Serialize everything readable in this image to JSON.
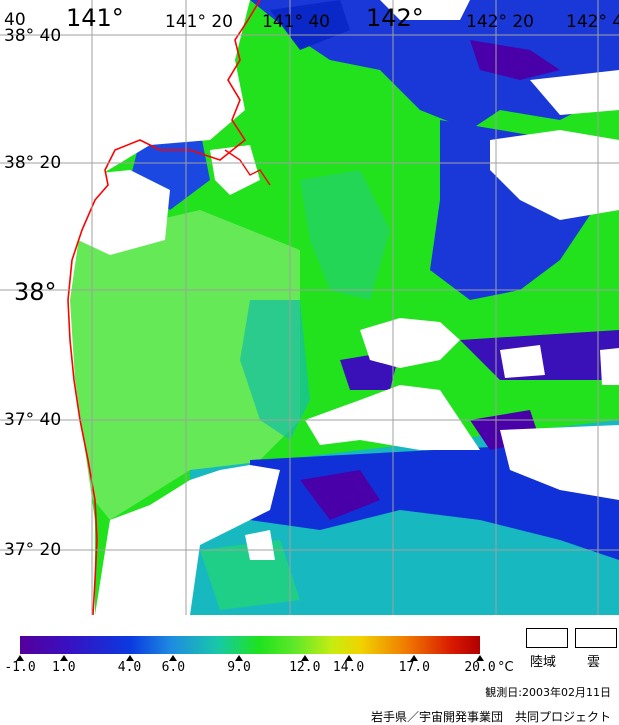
{
  "map": {
    "lon_labels": [
      "141°",
      "141° 20",
      "141° 40",
      "142°",
      "142° 20",
      "142° 4"
    ],
    "lat_labels": [
      "38° 40",
      "38° 20",
      "38°",
      "37° 40",
      "37° 20"
    ],
    "corner_label": "40",
    "colors": {
      "sea_dark": "#4a00a8",
      "sea_blue": "#1030d8",
      "sea_teal": "#10b8b0",
      "sea_green": "#22e21e",
      "sea_light": "#70e860",
      "land": "#ffffff",
      "coast": "#ff0000",
      "grid": "#a0a0a0"
    }
  },
  "legend": {
    "ticks": [
      "-1.0",
      "1.0",
      "4.0",
      "6.0",
      "9.0",
      "12.0",
      "14.0",
      "17.0",
      "20.0"
    ],
    "unit": "°C",
    "land_label": "陸域",
    "cloud_label": "雲"
  },
  "footer": {
    "obs_date": "観測日:2003年02月11日",
    "credit": "岩手県／宇宙開発事業団　共同プロジェクト"
  }
}
